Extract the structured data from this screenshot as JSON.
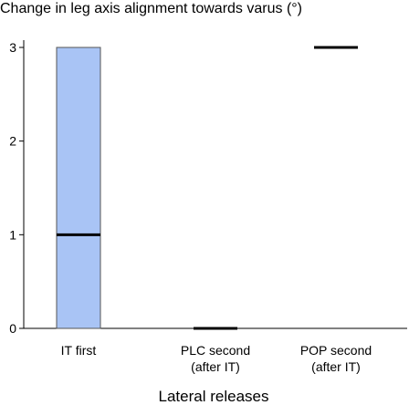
{
  "chart_data": {
    "type": "bar",
    "title": "Change in leg axis alignment towards varus (°)",
    "xlabel": "Lateral releases",
    "ylabel": "",
    "ylim": [
      0,
      3
    ],
    "yticks": [
      0,
      1,
      2,
      3
    ],
    "grid": false,
    "categories": [
      [
        "IT first"
      ],
      [
        "PLC second",
        "(after IT)"
      ],
      [
        "POP second",
        "(after IT)"
      ]
    ],
    "boxes": [
      {
        "low": 0,
        "high": 3,
        "median": 1
      },
      {
        "low": 0,
        "high": 0,
        "median": 0
      },
      {
        "low": 3,
        "high": 3,
        "median": 3
      }
    ],
    "colors": {
      "box_fill": "#a9c4f5",
      "box_stroke": "#555555",
      "median": "#000000",
      "axis": "#000000"
    }
  }
}
